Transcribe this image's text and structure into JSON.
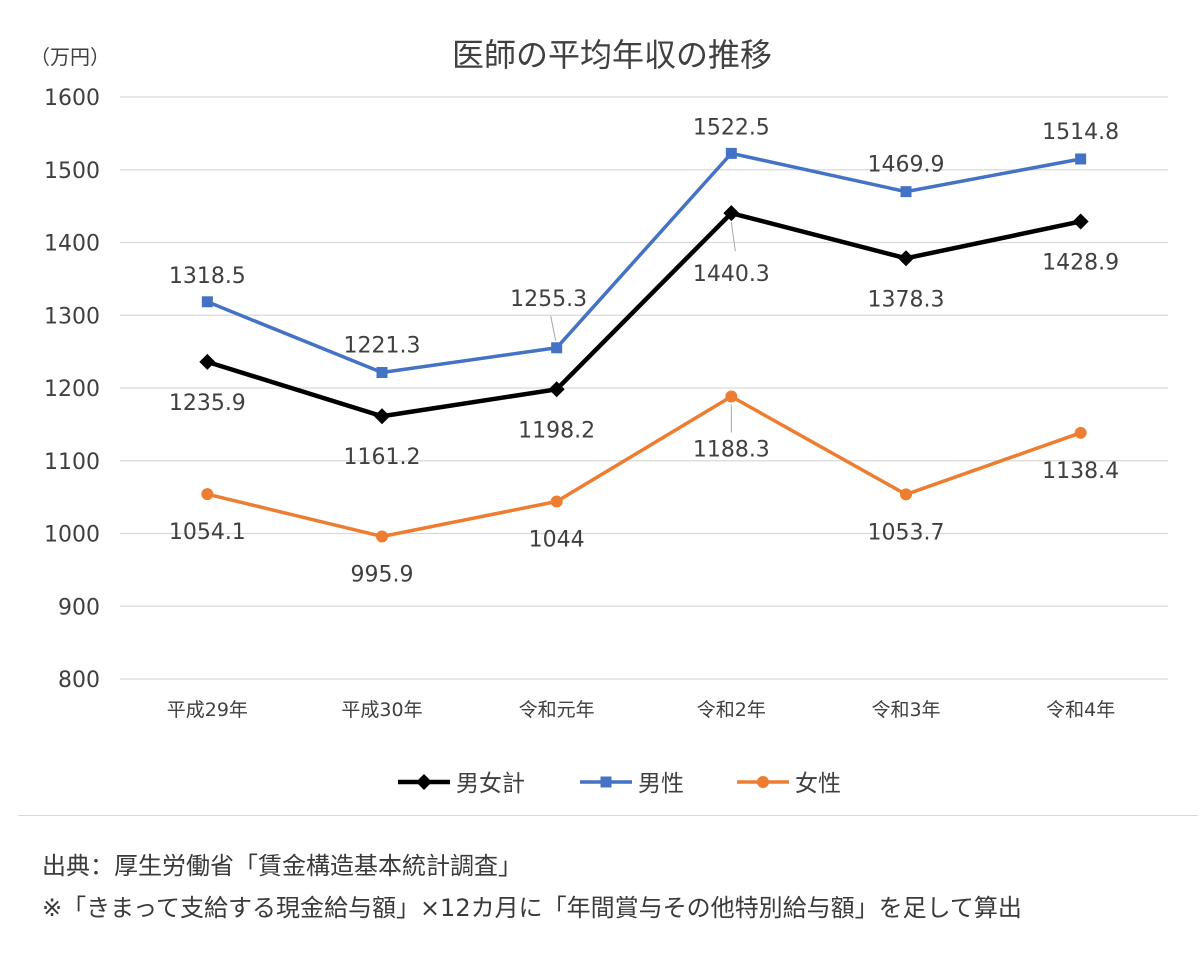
{
  "chart_data": {
    "type": "line",
    "title": "医師の平均年収の推移",
    "unit_label": "（万円）",
    "categories": [
      "平成29年",
      "平成30年",
      "令和元年",
      "令和2年",
      "令和3年",
      "令和4年"
    ],
    "ylim": [
      800,
      1600
    ],
    "yticks": [
      800,
      900,
      1000,
      1100,
      1200,
      1300,
      1400,
      1500,
      1600
    ],
    "grid": true,
    "legend_position": "bottom",
    "series": [
      {
        "name": "男女計",
        "color": "#000000",
        "marker": "diamond",
        "values": [
          1235.9,
          1161.2,
          1198.2,
          1440.3,
          1378.3,
          1428.9
        ],
        "labels": [
          "1235.9",
          "1161.2",
          "1198.2",
          "1440.3",
          "1378.3",
          "1428.9"
        ]
      },
      {
        "name": "男性",
        "color": "#4472c4",
        "marker": "square",
        "values": [
          1318.5,
          1221.3,
          1255.3,
          1522.5,
          1469.9,
          1514.8
        ],
        "labels": [
          "1318.5",
          "1221.3",
          "1255.3",
          "1522.5",
          "1469.9",
          "1514.8"
        ]
      },
      {
        "name": "女性",
        "color": "#ed7d31",
        "marker": "circle",
        "values": [
          1054.1,
          995.9,
          1044,
          1188.3,
          1053.7,
          1138.4
        ],
        "labels": [
          "1054.1",
          "995.9",
          "1044",
          "1188.3",
          "1053.7",
          "1138.4"
        ]
      }
    ]
  },
  "footnotes": {
    "source": "出典：厚生労働省「賃金構造基本統計調査」",
    "note": "※「きまって支給する現金給与額」×12カ月に「年間賞与その他特別給与額」を足して算出"
  }
}
